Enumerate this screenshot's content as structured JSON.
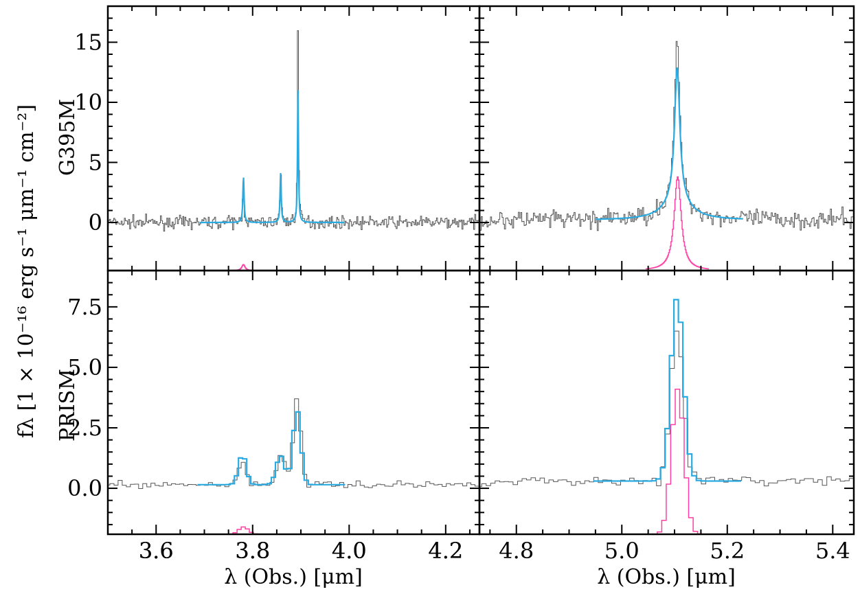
{
  "figure": {
    "ylabel": "fλ [1 × 10⁻¹⁶ erg s⁻¹ μm⁻¹ cm⁻²]",
    "xlabel": "λ (Obs.) [μm]",
    "row_labels": [
      "G395M",
      "PRISM"
    ],
    "colors": {
      "data": "#555555",
      "model": "#29abe2",
      "component": "#ff3ea5",
      "axes": "#000000"
    }
  },
  "chart_data": [
    {
      "type": "line",
      "row_label": "G395M",
      "xlim": [
        3.5,
        4.27
      ],
      "ylim": [
        -4,
        18
      ],
      "yticks": [
        0,
        5,
        10,
        15
      ],
      "xticks": [
        3.6,
        3.8,
        4.0,
        4.2
      ],
      "style": "fine",
      "data_range": [
        3.5,
        4.27
      ],
      "model_range": [
        3.69,
        3.99
      ],
      "baseline": 0.0,
      "noise": 0.35,
      "lines": [
        {
          "center": 3.781,
          "data_peak": 3.7,
          "model_peak": 3.8,
          "width": 0.0015
        },
        {
          "center": 3.858,
          "data_peak": 4.6,
          "model_peak": 4.1,
          "width": 0.0014
        },
        {
          "center": 3.894,
          "data_peak": 16.4,
          "model_peak": 11.0,
          "width": 0.0012
        }
      ],
      "component": {
        "center": 3.781,
        "peak": 0.5,
        "width": 0.004,
        "floor": -4
      }
    },
    {
      "type": "line",
      "row_label": "G395M",
      "xlim": [
        4.73,
        5.44
      ],
      "ylim": [
        -4,
        18
      ],
      "yticks": [
        0,
        5,
        10,
        15
      ],
      "xticks": [
        4.8,
        5.0,
        5.2,
        5.4
      ],
      "style": "fine",
      "data_range": [
        4.73,
        5.44
      ],
      "model_range": [
        4.95,
        5.23
      ],
      "baseline": 0.2,
      "noise": 0.55,
      "lines": [
        {
          "center": 5.105,
          "data_peak": 13.2,
          "model_peak": 11.2,
          "width": 0.006
        },
        {
          "center": 5.105,
          "data_peak": 1.5,
          "model_peak": 1.5,
          "width": 0.03
        }
      ],
      "component": {
        "center": 5.106,
        "peak": 7.8,
        "width": 0.008,
        "floor": -4
      }
    },
    {
      "type": "line",
      "row_label": "PRISM",
      "xlim": [
        3.5,
        4.27
      ],
      "ylim": [
        -1.9,
        9.0
      ],
      "yticks": [
        0.0,
        2.5,
        5.0,
        7.5
      ],
      "xticks": [
        3.6,
        3.8,
        4.0,
        4.2
      ],
      "style": "step",
      "data_range": [
        3.5,
        4.27
      ],
      "model_range": [
        3.69,
        3.99
      ],
      "baseline": 0.15,
      "noise": 0.1,
      "lines": [
        {
          "center": 3.779,
          "data_peak": 1.0,
          "model_peak": 1.25,
          "width": 0.008
        },
        {
          "center": 3.858,
          "data_peak": 1.15,
          "model_peak": 1.2,
          "width": 0.009
        },
        {
          "center": 3.892,
          "data_peak": 3.55,
          "model_peak": 3.1,
          "width": 0.008
        }
      ],
      "component": {
        "center": 3.781,
        "peak": 0.3,
        "width": 0.01,
        "floor": -1.9
      }
    },
    {
      "type": "line",
      "row_label": "PRISM",
      "xlim": [
        4.73,
        5.44
      ],
      "ylim": [
        -1.9,
        9.0
      ],
      "yticks": [
        0.0,
        2.5,
        5.0,
        7.5
      ],
      "xticks": [
        4.8,
        5.0,
        5.2,
        5.4
      ],
      "style": "step",
      "data_range": [
        4.73,
        5.44
      ],
      "model_range": [
        4.95,
        5.23
      ],
      "baseline": 0.3,
      "noise": 0.15,
      "lines": [
        {
          "center": 5.105,
          "data_peak": 6.4,
          "model_peak": 7.6,
          "width": 0.012
        }
      ],
      "component": {
        "center": 5.106,
        "peak": 6.0,
        "width": 0.012,
        "floor": -1.9
      }
    }
  ]
}
